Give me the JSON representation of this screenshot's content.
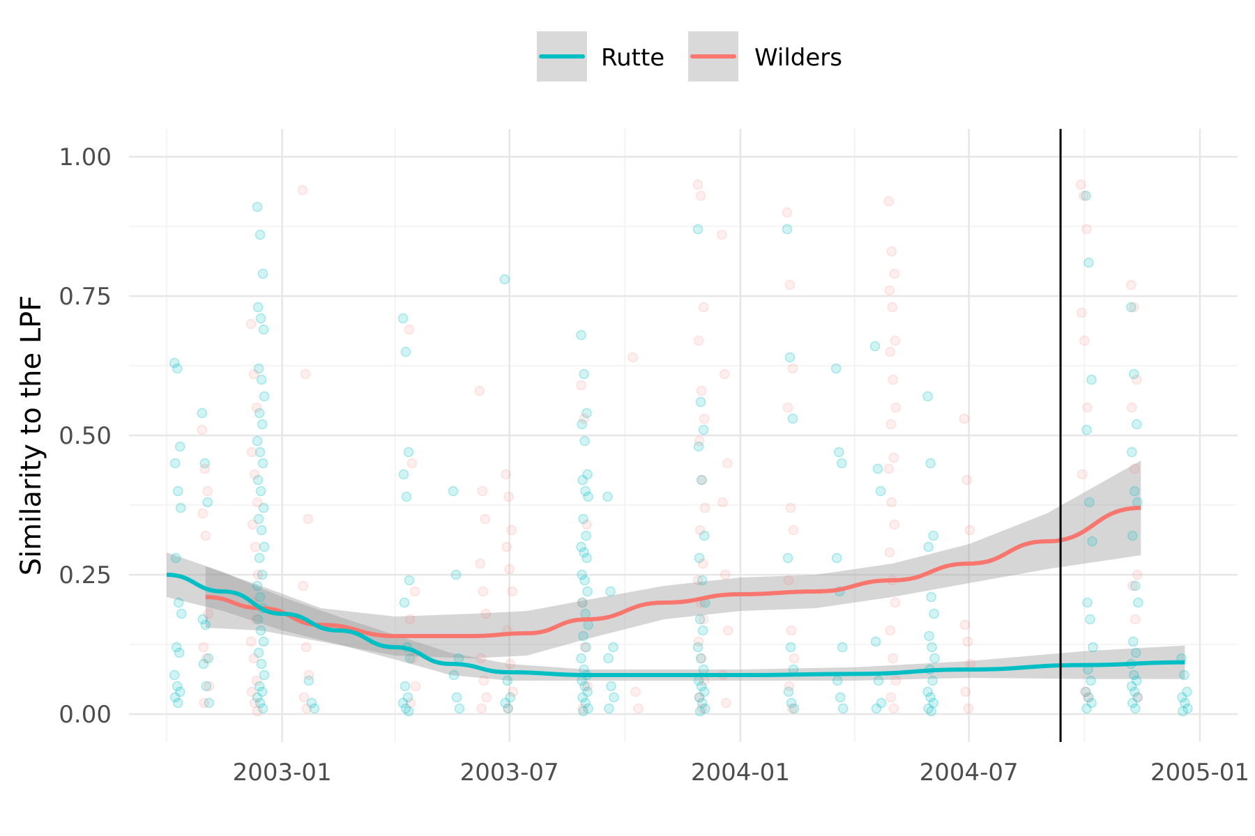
{
  "chart_data": {
    "type": "scatter",
    "xlabel": "",
    "ylabel": "Similarity to the LPF",
    "x_axis_type": "date",
    "xlim": [
      "2002-09-01",
      "2005-01-31"
    ],
    "ylim": [
      -0.05,
      1.05
    ],
    "x_ticks": [
      "2003-01",
      "2003-07",
      "2004-01",
      "2004-07",
      "2005-01"
    ],
    "y_ticks": [
      "0.00",
      "0.25",
      "0.50",
      "0.75",
      "1.00"
    ],
    "grid": true,
    "legend_position": "top",
    "vertical_line_x": "2004-09-12",
    "series": [
      {
        "name": "Rutte",
        "color": "#00BFC4",
        "smooth": [
          [
            "2002-10-01",
            0.25
          ],
          [
            "2002-11-15",
            0.22
          ],
          [
            "2003-01-01",
            0.18
          ],
          [
            "2003-02-15",
            0.15
          ],
          [
            "2003-04-01",
            0.12
          ],
          [
            "2003-05-15",
            0.09
          ],
          [
            "2003-07-01",
            0.075
          ],
          [
            "2003-09-01",
            0.07
          ],
          [
            "2004-01-01",
            0.07
          ],
          [
            "2004-04-01",
            0.072
          ],
          [
            "2004-07-01",
            0.08
          ],
          [
            "2004-10-01",
            0.088
          ],
          [
            "2004-12-20",
            0.093
          ]
        ],
        "band_halfwidth": [
          0.04,
          0.035,
          0.03,
          0.025,
          0.022,
          0.02,
          0.015,
          0.01,
          0.01,
          0.012,
          0.015,
          0.025,
          0.03
        ],
        "points": [
          [
            "2002-10-10",
            [
              0.63,
              0.62,
              0.48,
              0.45,
              0.4,
              0.37,
              0.28,
              0.2,
              0.18,
              0.12,
              0.11,
              0.07,
              0.05,
              0.04,
              0.03,
              0.02
            ]
          ],
          [
            "2002-11-01",
            [
              0.54,
              0.45,
              0.38,
              0.17,
              0.16,
              0.1,
              0.09,
              0.05,
              0.02
            ]
          ],
          [
            "2002-12-15",
            [
              0.91,
              0.86,
              0.79,
              0.73,
              0.71,
              0.69,
              0.62,
              0.6,
              0.57,
              0.54,
              0.52,
              0.49,
              0.47,
              0.45,
              0.42,
              0.4,
              0.37,
              0.35,
              0.33,
              0.3,
              0.28,
              0.25,
              0.23,
              0.21,
              0.19,
              0.17,
              0.15,
              0.13,
              0.11,
              0.09,
              0.07,
              0.05,
              0.04,
              0.03,
              0.02,
              0.01
            ]
          ],
          [
            "2003-01-25",
            [
              0.06,
              0.02,
              0.01
            ]
          ],
          [
            "2003-04-10",
            [
              0.71,
              0.65,
              0.47,
              0.43,
              0.39,
              0.24,
              0.2,
              0.12,
              0.1,
              0.05,
              0.03,
              0.02,
              0.01,
              0.005
            ]
          ],
          [
            "2003-05-20",
            [
              0.4,
              0.25,
              0.1,
              0.07,
              0.03,
              0.01
            ]
          ],
          [
            "2003-06-30",
            [
              0.78,
              0.06,
              0.03,
              0.02,
              0.01
            ]
          ],
          [
            "2003-08-30",
            [
              0.68,
              0.61,
              0.54,
              0.52,
              0.49,
              0.43,
              0.42,
              0.4,
              0.39,
              0.35,
              0.32,
              0.3,
              0.29,
              0.28,
              0.25,
              0.24,
              0.22,
              0.2,
              0.18,
              0.16,
              0.14,
              0.12,
              0.1,
              0.08,
              0.07,
              0.06,
              0.05,
              0.04,
              0.03,
              0.02,
              0.01,
              0.005
            ]
          ],
          [
            "2003-09-20",
            [
              0.39,
              0.22,
              0.12,
              0.1,
              0.05,
              0.03,
              0.01
            ]
          ],
          [
            "2003-12-01",
            [
              0.87,
              0.56,
              0.51,
              0.48,
              0.42,
              0.32,
              0.28,
              0.24,
              0.2,
              0.17,
              0.15,
              0.12,
              0.1,
              0.08,
              0.06,
              0.05,
              0.04,
              0.03,
              0.02,
              0.01,
              0.005
            ]
          ],
          [
            "2004-02-10",
            [
              0.87,
              0.64,
              0.53,
              0.28,
              0.12,
              0.08,
              0.04,
              0.02,
              0.01
            ]
          ],
          [
            "2004-03-20",
            [
              0.62,
              0.47,
              0.45,
              0.28,
              0.22,
              0.12,
              0.06,
              0.03,
              0.01
            ]
          ],
          [
            "2004-04-20",
            [
              0.66,
              0.44,
              0.4,
              0.13,
              0.06,
              0.02,
              0.01
            ]
          ],
          [
            "2004-06-01",
            [
              0.57,
              0.45,
              0.32,
              0.3,
              0.21,
              0.18,
              0.14,
              0.12,
              0.1,
              0.08,
              0.06,
              0.04,
              0.03,
              0.02,
              0.01,
              0.005
            ]
          ],
          [
            "2004-10-05",
            [
              0.93,
              0.81,
              0.6,
              0.51,
              0.38,
              0.31,
              0.2,
              0.17,
              0.12,
              0.08,
              0.06,
              0.04,
              0.03,
              0.02,
              0.01
            ]
          ],
          [
            "2004-11-10",
            [
              0.73,
              0.61,
              0.52,
              0.47,
              0.4,
              0.38,
              0.32,
              0.23,
              0.2,
              0.13,
              0.11,
              0.09,
              0.07,
              0.06,
              0.05,
              0.04,
              0.03,
              0.02,
              0.01
            ]
          ],
          [
            "2004-12-20",
            [
              0.1,
              0.07,
              0.04,
              0.03,
              0.02,
              0.01,
              0.005
            ]
          ]
        ]
      },
      {
        "name": "Wilders",
        "color": "#F8766D",
        "smooth": [
          [
            "2002-11-01",
            0.21
          ],
          [
            "2002-12-15",
            0.19
          ],
          [
            "2003-02-01",
            0.16
          ],
          [
            "2003-04-01",
            0.14
          ],
          [
            "2003-06-01",
            0.14
          ],
          [
            "2003-07-15",
            0.145
          ],
          [
            "2003-09-01",
            0.17
          ],
          [
            "2003-11-01",
            0.2
          ],
          [
            "2004-01-01",
            0.215
          ],
          [
            "2004-03-01",
            0.22
          ],
          [
            "2004-05-01",
            0.24
          ],
          [
            "2004-07-01",
            0.27
          ],
          [
            "2004-09-01",
            0.31
          ],
          [
            "2004-11-15",
            0.37
          ]
        ],
        "band_halfwidth": [
          0.055,
          0.04,
          0.03,
          0.035,
          0.04,
          0.04,
          0.035,
          0.03,
          0.03,
          0.03,
          0.03,
          0.035,
          0.05,
          0.085
        ],
        "points": [
          [
            "2002-11-01",
            [
              0.51,
              0.44,
              0.4,
              0.36,
              0.32,
              0.18,
              0.12,
              0.1,
              0.05,
              0.02
            ]
          ],
          [
            "2002-12-10",
            [
              0.7,
              0.61,
              0.55,
              0.47,
              0.43,
              0.38,
              0.34,
              0.3,
              0.25,
              0.2,
              0.17,
              0.13,
              0.1,
              0.06,
              0.04,
              0.02,
              0.005
            ]
          ],
          [
            "2003-01-20",
            [
              0.94,
              0.61,
              0.35,
              0.23,
              0.12,
              0.07,
              0.03,
              0.01
            ]
          ],
          [
            "2003-04-15",
            [
              0.69,
              0.45,
              0.22,
              0.17,
              0.1,
              0.05,
              0.02
            ]
          ],
          [
            "2003-06-10",
            [
              0.58,
              0.4,
              0.35,
              0.27,
              0.22,
              0.18,
              0.1,
              0.06,
              0.03,
              0.01
            ]
          ],
          [
            "2003-07-01",
            [
              0.43,
              0.39,
              0.33,
              0.3,
              0.26,
              0.22,
              0.15,
              0.09,
              0.04,
              0.01
            ]
          ],
          [
            "2003-08-30",
            [
              0.59,
              0.53,
              0.34,
              0.2,
              0.12,
              0.05,
              0.01
            ]
          ],
          [
            "2003-10-10",
            [
              0.64,
              0.04,
              0.01
            ]
          ],
          [
            "2003-12-01",
            [
              0.95,
              0.93,
              0.73,
              0.67,
              0.58,
              0.53,
              0.49,
              0.42,
              0.37,
              0.33,
              0.27,
              0.24,
              0.2,
              0.17,
              0.13,
              0.1,
              0.06,
              0.03,
              0.01
            ]
          ],
          [
            "2003-12-20",
            [
              0.86,
              0.61,
              0.45,
              0.38,
              0.25,
              0.15,
              0.07,
              0.02
            ]
          ],
          [
            "2004-02-10",
            [
              0.9,
              0.77,
              0.62,
              0.55,
              0.37,
              0.33,
              0.24,
              0.15,
              0.1,
              0.05,
              0.01
            ]
          ],
          [
            "2004-05-01",
            [
              0.92,
              0.83,
              0.79,
              0.76,
              0.73,
              0.67,
              0.65,
              0.6,
              0.55,
              0.52,
              0.46,
              0.44,
              0.38,
              0.34,
              0.29,
              0.24,
              0.2,
              0.15,
              0.1,
              0.06,
              0.03,
              0.01
            ]
          ],
          [
            "2004-06-30",
            [
              0.53,
              0.42,
              0.33,
              0.16,
              0.13,
              0.09,
              0.04,
              0.01
            ]
          ],
          [
            "2004-10-01",
            [
              0.95,
              0.93,
              0.87,
              0.72,
              0.67,
              0.55,
              0.43,
              0.04,
              0.03
            ]
          ],
          [
            "2004-11-10",
            [
              0.77,
              0.73,
              0.6,
              0.55,
              0.44,
              0.25,
              0.23,
              0.17,
              0.03
            ]
          ]
        ]
      }
    ]
  }
}
